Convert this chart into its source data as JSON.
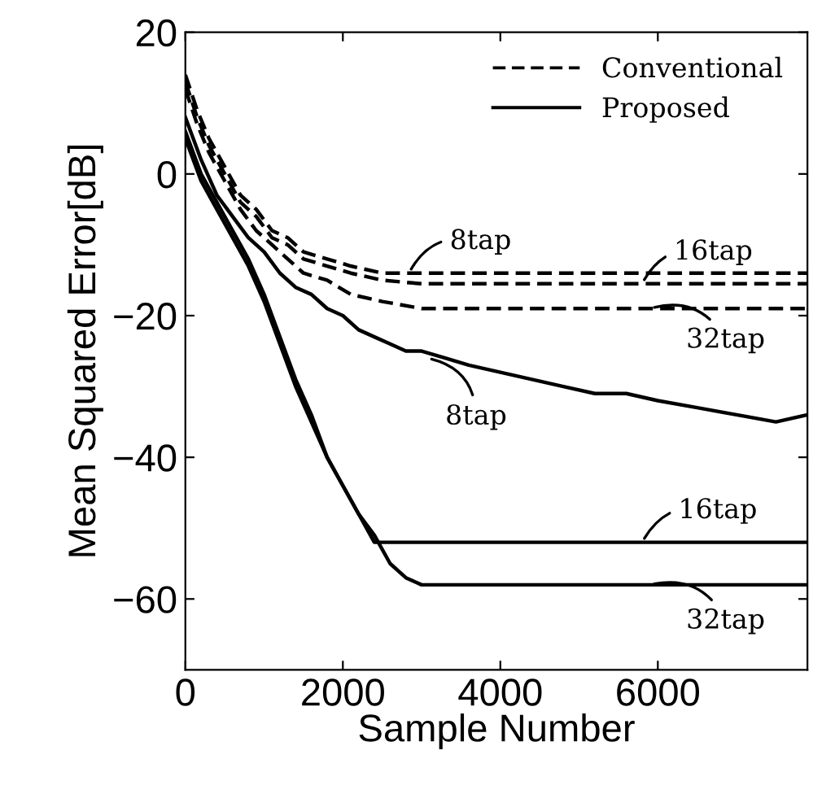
{
  "chart_data": {
    "type": "line",
    "xlabel": "Sample Number",
    "ylabel": "Mean Squared Error[dB]",
    "xlim": [
      0,
      7900
    ],
    "ylim": [
      -70,
      20
    ],
    "xticks": [
      0,
      2000,
      4000,
      6000
    ],
    "yticks": [
      -60,
      -40,
      -20,
      0,
      20
    ],
    "grid": false,
    "legend": "top right",
    "marker": "none",
    "series": [
      {
        "name": "Conventional",
        "color": "#000000",
        "line_style": "dashed",
        "x": [
          0,
          150,
          300,
          500,
          700,
          900,
          1100,
          1300,
          1500,
          1800,
          2100,
          2500,
          3000,
          3500,
          4000,
          5000,
          6000,
          7000,
          7900
        ],
        "values": [
          14,
          9,
          5,
          1,
          -3,
          -5,
          -8,
          -9,
          -11,
          -12,
          -13,
          -14,
          -14,
          -14,
          -14,
          -14,
          -14,
          -14,
          -14
        ]
      },
      {
        "color": "#000000",
        "line_style": "dashed",
        "x": [
          0,
          150,
          300,
          500,
          700,
          900,
          1100,
          1300,
          1500,
          1800,
          2100,
          2500,
          3000,
          3500,
          4000,
          5000,
          6000,
          7000,
          7900
        ],
        "values": [
          13,
          8,
          4,
          0,
          -4,
          -6,
          -9,
          -10,
          -12,
          -13,
          -14,
          -15,
          -15.5,
          -15.5,
          -15.5,
          -15.5,
          -15.5,
          -15.5,
          -15.5
        ]
      },
      {
        "color": "#000000",
        "line_style": "dashed",
        "x": [
          0,
          150,
          300,
          500,
          700,
          900,
          1100,
          1300,
          1500,
          1800,
          2100,
          2500,
          3000,
          3500,
          4000,
          5000,
          6000,
          7000,
          7900
        ],
        "values": [
          12,
          7,
          3,
          -1,
          -5,
          -8,
          -10,
          -12,
          -14,
          -15,
          -17,
          -18,
          -19,
          -19,
          -19,
          -19,
          -19,
          -19,
          -19
        ]
      },
      {
        "name": "Proposed",
        "color": "#000000",
        "line_style": "solid",
        "x": [
          0,
          200,
          400,
          600,
          800,
          1000,
          1200,
          1400,
          1600,
          1800,
          2000,
          2200,
          2400,
          2600,
          2800,
          3000,
          3300,
          3600,
          4000,
          4400,
          4800,
          5200,
          5600,
          6000,
          6500,
          7000,
          7500,
          7900
        ],
        "values": [
          8,
          2,
          -3,
          -6,
          -9,
          -11,
          -14,
          -16,
          -17,
          -19,
          -20,
          -22,
          -23,
          -24,
          -25,
          -25,
          -26,
          -27,
          -28,
          -29,
          -30,
          -31,
          -31,
          -32,
          -33,
          -34,
          -35,
          -34
        ]
      },
      {
        "color": "#000000",
        "line_style": "solid",
        "x": [
          0,
          200,
          400,
          600,
          800,
          1000,
          1200,
          1400,
          1600,
          1800,
          2000,
          2200,
          2400,
          2600,
          3000,
          4000,
          5000,
          6000,
          7000,
          7900
        ],
        "values": [
          6,
          0,
          -4,
          -8,
          -12,
          -17,
          -23,
          -29,
          -34,
          -40,
          -44,
          -48,
          -52,
          -52,
          -52,
          -52,
          -52,
          -52,
          -52,
          -52
        ]
      },
      {
        "color": "#000000",
        "line_style": "solid",
        "x": [
          0,
          200,
          400,
          600,
          800,
          1000,
          1200,
          1400,
          1600,
          1800,
          2000,
          2200,
          2400,
          2600,
          2800,
          3000,
          4000,
          5000,
          6000,
          7000,
          7900
        ],
        "values": [
          5,
          -1,
          -5,
          -9,
          -13,
          -18,
          -24,
          -30,
          -35,
          -40,
          -44,
          -48,
          -51,
          -55,
          -57,
          -58,
          -58,
          -58,
          -58,
          -58,
          -58
        ]
      }
    ],
    "annotations": [
      {
        "text": "8tap",
        "x": 2840,
        "y": -14
      },
      {
        "text": "16tap",
        "x": 5800,
        "y": -15.5
      },
      {
        "text": "32tap",
        "x": 5900,
        "y": -19
      },
      {
        "text": "8tap",
        "x": 3070,
        "y": -26
      },
      {
        "text": "16tap",
        "x": 5800,
        "y": -52
      },
      {
        "text": "32tap",
        "x": 5900,
        "y": -58
      }
    ]
  }
}
